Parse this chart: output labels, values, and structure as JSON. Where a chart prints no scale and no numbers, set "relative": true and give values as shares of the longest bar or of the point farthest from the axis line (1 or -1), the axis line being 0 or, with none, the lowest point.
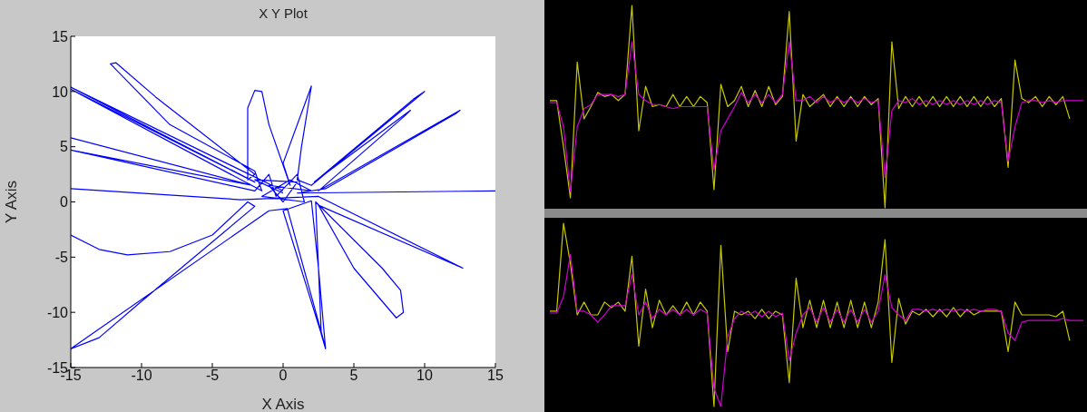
{
  "chart_data": [
    {
      "type": "line",
      "title": "X Y Plot",
      "xlabel": "X Axis",
      "ylabel": "Y Axis",
      "xlim": [
        -15,
        15
      ],
      "ylim": [
        -15,
        15
      ],
      "xticks": [
        -15,
        -10,
        -5,
        0,
        5,
        10,
        15
      ],
      "yticks": [
        -15,
        -10,
        -5,
        0,
        5,
        10,
        15
      ],
      "x": [
        0,
        -15,
        -2,
        -15,
        -1.5,
        -2,
        -8,
        -12.2,
        -11.8,
        -9,
        -2,
        -2.5,
        -2.5,
        -2,
        -1.5,
        -1,
        0.5,
        0,
        2,
        1.3,
        1,
        2,
        10,
        9.2,
        2.2,
        9,
        8.6,
        2.5,
        12.5,
        12.2,
        3,
        1,
        15,
        null,
        -15,
        -3,
        2.5,
        12.7,
        2.5,
        5,
        8,
        8.5,
        8.3,
        7,
        2.3,
        2.7,
        3,
        2.5,
        2,
        0,
        3,
        0.3,
        -1,
        -15,
        -13,
        -10,
        -2,
        -2.5,
        -5,
        -8,
        -11,
        -13,
        -15,
        null,
        -15,
        -2.2,
        -15,
        -2,
        -1,
        -0.5,
        1,
        1.5,
        -1.5,
        0.5,
        2,
        -1,
        0,
        1,
        -2,
        0
      ],
      "series": [
        {
          "color": "#0000ff",
          "values": [
            1,
            10.4,
            1.8,
            10.2,
            1,
            2.8,
            7,
            12.5,
            12.6,
            9.5,
            2.5,
            2,
            8.5,
            10.1,
            10,
            7,
            1.5,
            3.5,
            10.5,
            5,
            2,
            1.5,
            10,
            9.3,
            1.8,
            8.3,
            7.8,
            1,
            8.3,
            8,
            1.2,
            0.8,
            1,
            null,
            1.2,
            0.2,
            0.5,
            -6,
            -0.3,
            -6,
            -10.5,
            -10,
            -8,
            -6,
            0,
            -12,
            -13.3,
            -6,
            0.1,
            -0.8,
            -13.2,
            -0.6,
            -0.8,
            -13.3,
            -12.3,
            -9,
            -0.4,
            0,
            -3,
            -4.5,
            -4.8,
            -4.3,
            -3,
            null,
            5.8,
            1.5,
            4.7,
            1,
            2.5,
            0.5,
            2.5,
            0,
            0.5,
            2,
            1,
            1.5,
            0,
            1.8,
            2,
            0.8
          ]
        }
      ]
    },
    {
      "type": "line",
      "relative": true,
      "categories": [
        null,
        null,
        null,
        null,
        null,
        null,
        null,
        null,
        null,
        null,
        null,
        null,
        null,
        null,
        null,
        null,
        null,
        null,
        null,
        null,
        null,
        null,
        null,
        null,
        null,
        null,
        null,
        null,
        null,
        null,
        null,
        null,
        null,
        null,
        null,
        null,
        null,
        null,
        null,
        null,
        null,
        null,
        null,
        null,
        null,
        null,
        null,
        null,
        null,
        null,
        null,
        null,
        null,
        null,
        null,
        null,
        null,
        null,
        null,
        null,
        null,
        null,
        null,
        null,
        null,
        null,
        null,
        null,
        null,
        null,
        null,
        null,
        null,
        null,
        null,
        null,
        null,
        null,
        null
      ],
      "series": [
        {
          "color": "#c8c800",
          "values": [
            0.53,
            0.53,
            0.3,
            0.05,
            0.72,
            0.44,
            0.5,
            0.57,
            0.55,
            0.56,
            0.53,
            0.56,
            1.0,
            0.38,
            0.6,
            0.5,
            0.51,
            0.5,
            0.56,
            0.5,
            0.55,
            0.5,
            0.55,
            0.52,
            0.09,
            0.61,
            0.5,
            0.53,
            0.6,
            0.5,
            0.58,
            0.5,
            0.6,
            0.51,
            0.55,
            0.97,
            0.33,
            0.56,
            0.5,
            0.53,
            0.56,
            0.5,
            0.55,
            0.5,
            0.55,
            0.5,
            0.55,
            0.51,
            0.54,
            0.0,
            0.82,
            0.49,
            0.55,
            0.5,
            0.55,
            0.5,
            0.55,
            0.5,
            0.55,
            0.5,
            0.55,
            0.5,
            0.55,
            0.5,
            0.55,
            0.5,
            0.54,
            0.2,
            0.73,
            0.54,
            0.52,
            0.55,
            0.5,
            0.55,
            0.51,
            0.55,
            0.44,
            null,
            null
          ]
        },
        {
          "color": "#d000d0",
          "values": [
            0.52,
            0.52,
            0.4,
            0.08,
            0.4,
            0.49,
            0.51,
            0.56,
            0.56,
            0.56,
            0.55,
            0.56,
            0.82,
            0.56,
            0.53,
            0.51,
            0.51,
            0.5,
            0.49,
            0.5,
            0.5,
            0.5,
            0.5,
            0.5,
            0.19,
            0.38,
            0.44,
            0.5,
            0.57,
            0.52,
            0.56,
            0.52,
            0.56,
            0.52,
            0.56,
            0.82,
            0.53,
            0.53,
            0.55,
            0.52,
            0.55,
            0.52,
            0.54,
            0.52,
            0.54,
            0.52,
            0.54,
            0.52,
            0.53,
            0.15,
            0.48,
            0.53,
            0.52,
            0.54,
            0.51,
            0.53,
            0.51,
            0.53,
            0.51,
            0.53,
            0.51,
            0.53,
            0.51,
            0.53,
            0.51,
            0.53,
            0.52,
            0.23,
            0.4,
            0.52,
            0.53,
            0.53,
            0.52,
            0.53,
            0.52,
            0.53,
            0.53,
            0.53,
            0.53
          ]
        }
      ]
    },
    {
      "type": "line",
      "relative": true,
      "categories": [
        null,
        null,
        null,
        null,
        null,
        null,
        null,
        null,
        null,
        null,
        null,
        null,
        null,
        null,
        null,
        null,
        null,
        null,
        null,
        null,
        null,
        null,
        null,
        null,
        null,
        null,
        null,
        null,
        null,
        null,
        null,
        null,
        null,
        null,
        null,
        null,
        null,
        null,
        null,
        null,
        null,
        null,
        null,
        null,
        null,
        null,
        null,
        null,
        null,
        null,
        null,
        null,
        null,
        null,
        null,
        null,
        null,
        null,
        null,
        null,
        null,
        null,
        null,
        null,
        null,
        null,
        null,
        null,
        null,
        null,
        null,
        null,
        null,
        null,
        null,
        null,
        null,
        null,
        null
      ],
      "series": [
        {
          "color": "#c8c800",
          "values": [
            0.52,
            0.52,
            1.0,
            0.78,
            0.5,
            0.57,
            0.5,
            0.5,
            0.57,
            0.54,
            0.57,
            0.52,
            0.82,
            0.33,
            0.64,
            0.43,
            0.58,
            0.5,
            0.55,
            0.5,
            0.57,
            0.5,
            0.57,
            0.52,
            0.0,
            0.88,
            0.3,
            0.52,
            0.5,
            0.52,
            0.48,
            0.53,
            0.48,
            0.52,
            0.5,
            0.13,
            0.7,
            0.43,
            0.58,
            0.43,
            0.58,
            0.43,
            0.57,
            0.43,
            0.58,
            0.43,
            0.57,
            0.43,
            0.57,
            0.91,
            0.24,
            0.59,
            0.45,
            0.52,
            0.5,
            0.53,
            0.49,
            0.53,
            0.49,
            0.54,
            0.49,
            0.53,
            0.5,
            0.52,
            0.52,
            0.52,
            0.52,
            0.3,
            0.57,
            0.5,
            0.5,
            0.5,
            0.5,
            0.5,
            0.49,
            0.52,
            0.36,
            null,
            null
          ]
        },
        {
          "color": "#d000d0",
          "values": [
            0.51,
            0.51,
            0.6,
            0.83,
            0.52,
            0.52,
            0.5,
            0.46,
            0.5,
            0.55,
            0.55,
            0.55,
            0.72,
            0.5,
            0.57,
            0.48,
            0.53,
            0.5,
            0.53,
            0.5,
            0.53,
            0.5,
            0.53,
            0.51,
            0.1,
            0.0,
            0.38,
            0.48,
            0.52,
            0.5,
            0.52,
            0.49,
            0.52,
            0.49,
            0.51,
            0.25,
            0.4,
            0.5,
            0.54,
            0.46,
            0.54,
            0.46,
            0.53,
            0.46,
            0.53,
            0.46,
            0.53,
            0.46,
            0.52,
            0.72,
            0.54,
            0.5,
            0.47,
            0.53,
            0.53,
            0.52,
            0.53,
            0.52,
            0.53,
            0.52,
            0.53,
            0.52,
            0.53,
            0.52,
            0.53,
            0.53,
            0.52,
            0.4,
            0.36,
            0.46,
            0.47,
            0.47,
            0.47,
            0.47,
            0.47,
            0.48,
            0.47,
            0.47,
            0.47
          ]
        }
      ]
    }
  ]
}
